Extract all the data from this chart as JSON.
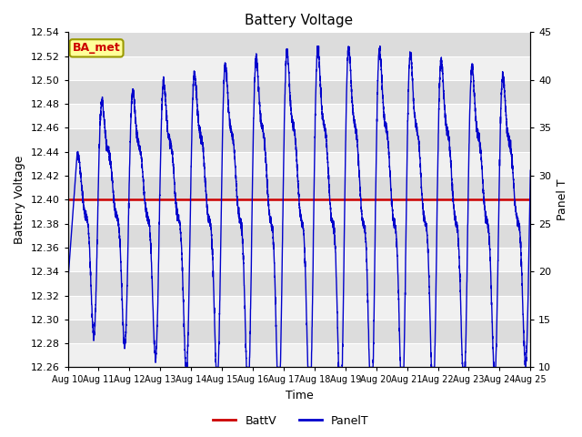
{
  "title": "Battery Voltage",
  "xlabel": "Time",
  "ylabel_left": "Battery Voltage",
  "ylabel_right": "Panel T",
  "ylim_left": [
    12.26,
    12.54
  ],
  "ylim_right": [
    10,
    45
  ],
  "x_tick_labels": [
    "Aug 10",
    "Aug 11",
    "Aug 12",
    "Aug 13",
    "Aug 14",
    "Aug 15",
    "Aug 16",
    "Aug 17",
    "Aug 18",
    "Aug 19",
    "Aug 20",
    "Aug 21",
    "Aug 22",
    "Aug 23",
    "Aug 24",
    "Aug 25"
  ],
  "batt_v": 12.4,
  "batt_color": "#cc0000",
  "panel_color": "#0000cc",
  "bg_color_light": "#f0f0f0",
  "bg_color_dark": "#dcdcdc",
  "label_box_text": "BA_met",
  "label_box_facecolor": "#ffff99",
  "label_box_edgecolor": "#999900",
  "label_box_textcolor": "#cc0000",
  "legend_labels": [
    "BattV",
    "PanelT"
  ],
  "panel_t_scale_min": 10,
  "panel_t_scale_max": 45,
  "figwidth": 6.4,
  "figheight": 4.8,
  "dpi": 100
}
